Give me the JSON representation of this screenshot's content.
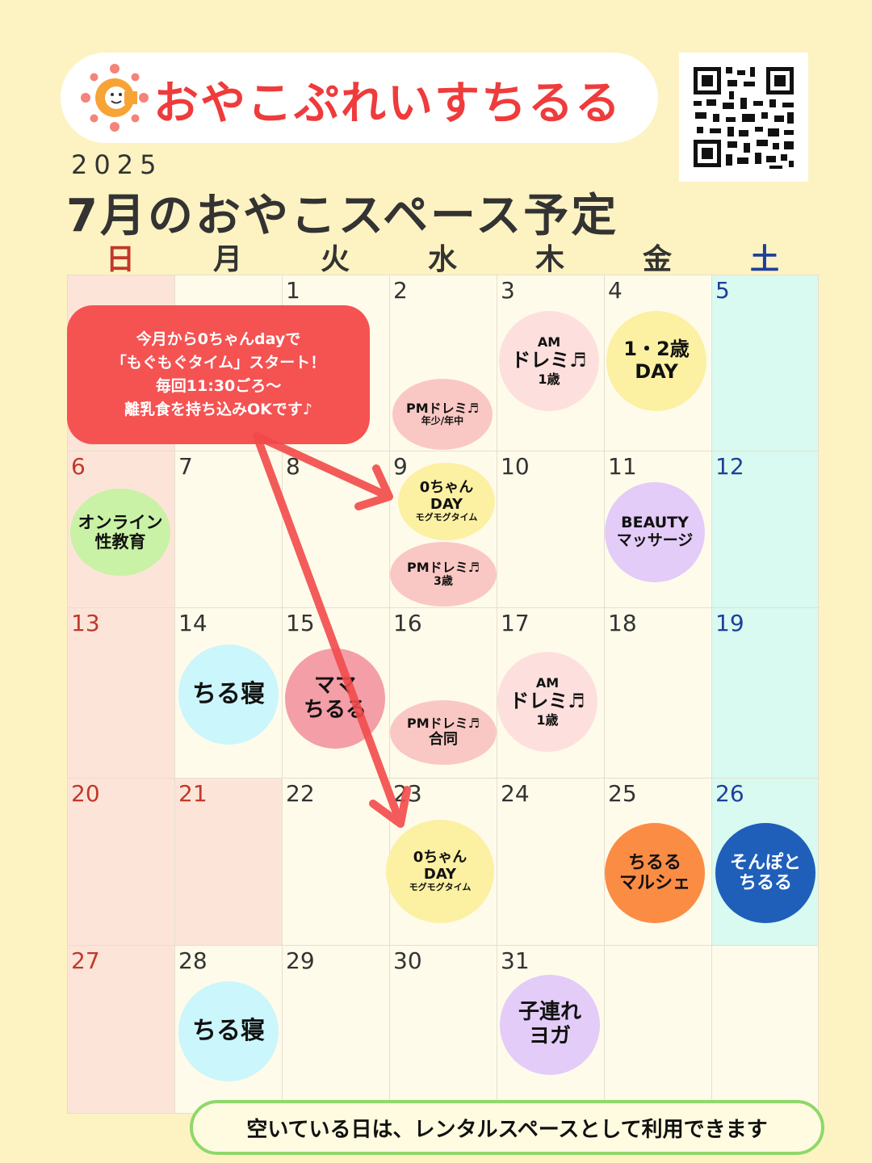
{
  "header": {
    "brand": "おやこぷれいすちるる"
  },
  "year": "2025",
  "title": "7月のおやこスペース予定",
  "weekdays": [
    {
      "label": "日",
      "color": "#c0392b"
    },
    {
      "label": "月",
      "color": "#333333"
    },
    {
      "label": "火",
      "color": "#333333"
    },
    {
      "label": "水",
      "color": "#333333"
    },
    {
      "label": "木",
      "color": "#333333"
    },
    {
      "label": "金",
      "color": "#333333"
    },
    {
      "label": "土",
      "color": "#1e3f9a"
    }
  ],
  "days": [
    {
      "num": "1",
      "week": 0,
      "col": 2
    },
    {
      "num": "2",
      "week": 0,
      "col": 3
    },
    {
      "num": "3",
      "week": 0,
      "col": 4
    },
    {
      "num": "4",
      "week": 0,
      "col": 5
    },
    {
      "num": "5",
      "week": 0,
      "col": 6,
      "color": "#1e3f9a"
    },
    {
      "num": "6",
      "week": 1,
      "col": 0,
      "color": "#c0392b"
    },
    {
      "num": "7",
      "week": 1,
      "col": 1
    },
    {
      "num": "8",
      "week": 1,
      "col": 2
    },
    {
      "num": "9",
      "week": 1,
      "col": 3
    },
    {
      "num": "10",
      "week": 1,
      "col": 4
    },
    {
      "num": "11",
      "week": 1,
      "col": 5
    },
    {
      "num": "12",
      "week": 1,
      "col": 6,
      "color": "#1e3f9a"
    },
    {
      "num": "13",
      "week": 2,
      "col": 0,
      "color": "#c0392b"
    },
    {
      "num": "14",
      "week": 2,
      "col": 1
    },
    {
      "num": "15",
      "week": 2,
      "col": 2
    },
    {
      "num": "16",
      "week": 2,
      "col": 3
    },
    {
      "num": "17",
      "week": 2,
      "col": 4
    },
    {
      "num": "18",
      "week": 2,
      "col": 5
    },
    {
      "num": "19",
      "week": 2,
      "col": 6,
      "color": "#1e3f9a"
    },
    {
      "num": "20",
      "week": 3,
      "col": 0,
      "color": "#c0392b"
    },
    {
      "num": "21",
      "week": 3,
      "col": 1,
      "color": "#c0392b"
    },
    {
      "num": "22",
      "week": 3,
      "col": 2
    },
    {
      "num": "23",
      "week": 3,
      "col": 3
    },
    {
      "num": "24",
      "week": 3,
      "col": 4
    },
    {
      "num": "25",
      "week": 3,
      "col": 5
    },
    {
      "num": "26",
      "week": 3,
      "col": 6,
      "color": "#1e3f9a"
    },
    {
      "num": "27",
      "week": 4,
      "col": 0,
      "color": "#c0392b"
    },
    {
      "num": "28",
      "week": 4,
      "col": 1
    },
    {
      "num": "29",
      "week": 4,
      "col": 2
    },
    {
      "num": "30",
      "week": 4,
      "col": 3
    },
    {
      "num": "31",
      "week": 4,
      "col": 4
    }
  ],
  "cell_colors": {
    "sunday": "#fde4d8",
    "saturday": "#d8faf0",
    "holiday": "#fde4d8",
    "default": "#fffbeb"
  },
  "events": [
    {
      "lines": [
        "PMドレミ♬",
        "年少/年中"
      ],
      "sizes": [
        16,
        12
      ],
      "bg": "#fac8c4",
      "fg": "#111111",
      "name": "event-pm-doremi-0702"
    },
    {
      "lines": [
        "AM",
        "ドレミ♬",
        "1歳"
      ],
      "sizes": [
        16,
        24,
        16
      ],
      "bg": "#fde0de",
      "fg": "#111111",
      "name": "event-am-doremi-0703"
    },
    {
      "lines": [
        "1・2歳",
        "DAY"
      ],
      "sizes": [
        24,
        24
      ],
      "bg": "#fcf0a2",
      "fg": "#111111",
      "name": "event-12sai-day-0704"
    },
    {
      "lines": [
        "オンライン",
        "性教育"
      ],
      "sizes": [
        21,
        21
      ],
      "bg": "#c9f2a6",
      "fg": "#111111",
      "name": "event-online-sex-ed-0706"
    },
    {
      "lines": [
        "0ちゃん",
        "DAY",
        "モグモグタイム"
      ],
      "sizes": [
        18,
        18,
        11
      ],
      "bg": "#fcf0a2",
      "fg": "#111111",
      "name": "event-0chan-day-0709"
    },
    {
      "lines": [
        "PMドレミ♬",
        "3歳"
      ],
      "sizes": [
        16,
        14
      ],
      "bg": "#fac8c4",
      "fg": "#111111",
      "name": "event-pm-doremi-0709"
    },
    {
      "lines": [
        "BEAUTY",
        "マッサージ"
      ],
      "sizes": [
        19,
        19
      ],
      "bg": "#e3ccf8",
      "fg": "#111111",
      "name": "event-beauty-massage-0711"
    },
    {
      "lines": [
        "ちる寝"
      ],
      "sizes": [
        30
      ],
      "bg": "#cbf6fb",
      "fg": "#111111",
      "name": "event-chirune-0714"
    },
    {
      "lines": [
        "ママ",
        "ちるる"
      ],
      "sizes": [
        26,
        26
      ],
      "bg": "#f49ea8",
      "fg": "#111111",
      "name": "event-mama-chiruru-0715"
    },
    {
      "lines": [
        "PMドレミ♬",
        "合同"
      ],
      "sizes": [
        16,
        18
      ],
      "bg": "#fac8c4",
      "fg": "#111111",
      "name": "event-pm-doremi-0716"
    },
    {
      "lines": [
        "AM",
        "ドレミ♬",
        "1歳"
      ],
      "sizes": [
        16,
        24,
        16
      ],
      "bg": "#fde0de",
      "fg": "#111111",
      "name": "event-am-doremi-0717"
    },
    {
      "lines": [
        "0ちゃん",
        "DAY",
        "モグモグタイム"
      ],
      "sizes": [
        18,
        18,
        11
      ],
      "bg": "#fcf0a2",
      "fg": "#111111",
      "name": "event-0chan-day-0723"
    },
    {
      "lines": [
        "ちるる",
        "マルシェ"
      ],
      "sizes": [
        22,
        22
      ],
      "bg": "#fb8c44",
      "fg": "#111111",
      "name": "event-chiruru-marche-0725"
    },
    {
      "lines": [
        "そんぽと",
        "ちるる"
      ],
      "sizes": [
        22,
        22
      ],
      "bg": "#1f5fba",
      "fg": "#ffffff",
      "name": "event-sonpo-chiruru-0726"
    },
    {
      "lines": [
        "ちる寝"
      ],
      "sizes": [
        30
      ],
      "bg": "#cbf6fb",
      "fg": "#111111",
      "name": "event-chirune-0728"
    },
    {
      "lines": [
        "子連れ",
        "ヨガ"
      ],
      "sizes": [
        26,
        26
      ],
      "bg": "#e3ccf8",
      "fg": "#111111",
      "name": "event-kozure-yoga-0731"
    }
  ],
  "notice": {
    "lines": [
      "今月から0ちゃんdayで",
      "「もぐもぐタイム」スタート！",
      "毎回11:30ごろ～",
      "離乳食を持ち込みOKです♪"
    ]
  },
  "footer": {
    "text": "空いている日は、レンタルスペースとして利用できます"
  }
}
